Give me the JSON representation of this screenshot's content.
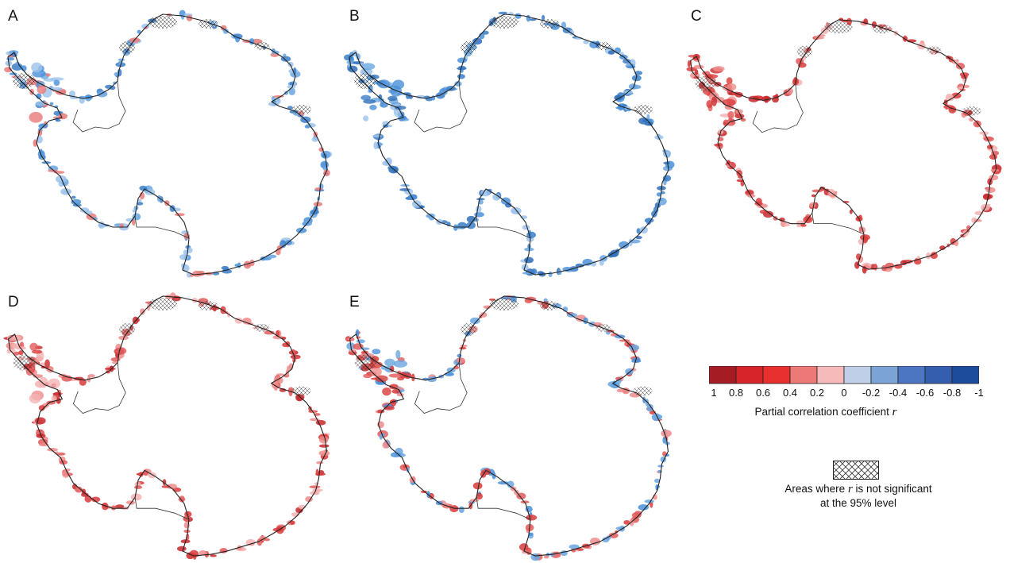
{
  "panels": [
    {
      "label": "A",
      "tint": "mixed-blue"
    },
    {
      "label": "B",
      "tint": "blue"
    },
    {
      "label": "C",
      "tint": "red"
    },
    {
      "label": "D",
      "tint": "red"
    },
    {
      "label": "E",
      "tint": "mixed"
    }
  ],
  "colorbar": {
    "tick_labels": [
      "1",
      "0.8",
      "0.6",
      "0.4",
      "0.2",
      "0",
      "-0.2",
      "-0.4",
      "-0.6",
      "-0.8",
      "-1"
    ],
    "colors": [
      "#a61c25",
      "#d7242b",
      "#e8312e",
      "#ec7878",
      "#f6baba",
      "#bfcfe8",
      "#7ba3d6",
      "#4c76c2",
      "#355fae",
      "#1d4c9c"
    ],
    "title_prefix": "Partial correlation coefficient ",
    "title_var": "r"
  },
  "hatch_legend": {
    "line1_prefix": "Areas where ",
    "line1_var": "r",
    "line1_suffix": " is not significant",
    "line2": "at the 95% level"
  }
}
